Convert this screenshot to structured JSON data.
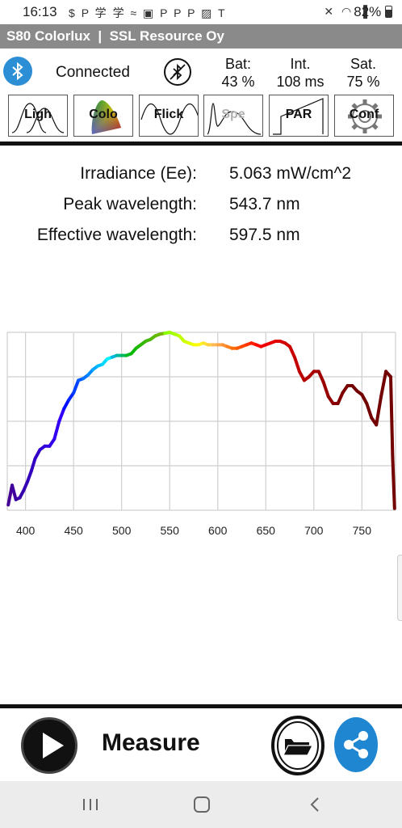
{
  "status_bar": {
    "time": "16:13",
    "notification_icons": [
      "cash-icon",
      "paypal-icon",
      "chinese-app-icon",
      "chinese-app-icon",
      "cast-icon",
      "linkedin-icon",
      "paypal-icon",
      "paypal-icon",
      "paypal-icon",
      "gallery-icon",
      "tesla-icon"
    ],
    "system_icons": [
      "mute-icon",
      "wifi-icon",
      "signal-icon"
    ],
    "battery": "82%"
  },
  "title_bar": {
    "title": "S80 Colorlux  |  SSL Resource Oy"
  },
  "connection": {
    "status": "Connected"
  },
  "stats": [
    {
      "label": "Bat:",
      "value": "43 %"
    },
    {
      "label": "Int.",
      "value": "108 ms"
    },
    {
      "label": "Sat.",
      "value": "75 %"
    }
  ],
  "function_buttons": [
    {
      "id": "light",
      "label": "Ligh"
    },
    {
      "id": "color",
      "label": "Colo"
    },
    {
      "id": "flicker",
      "label": "Flick"
    },
    {
      "id": "spectrum",
      "label": "Spe"
    },
    {
      "id": "par",
      "label": "PAR"
    },
    {
      "id": "config",
      "label": "Conf"
    }
  ],
  "readings": [
    {
      "label": "Irradiance (Ee):",
      "value": "5.063 mW/cm^2"
    },
    {
      "label": "Peak wavelength:",
      "value": "543.7 nm"
    },
    {
      "label": "Effective wavelength:",
      "value": "597.5 nm"
    }
  ],
  "chart_data": {
    "type": "line",
    "title": "",
    "xlabel": "",
    "ylabel": "",
    "x_ticks": [
      "400",
      "450",
      "500",
      "550",
      "600",
      "650",
      "700",
      "750"
    ],
    "xlim": [
      381,
      785
    ],
    "ylim": [
      0,
      1
    ],
    "grid": true,
    "series": [
      {
        "x": [
          382,
          386,
          390,
          394,
          398,
          402,
          406,
          410,
          415,
          420,
          425,
          430,
          435,
          440,
          445,
          450,
          455,
          460,
          465,
          470,
          475,
          480,
          485,
          490,
          495,
          500,
          505,
          510,
          515,
          520,
          525,
          530,
          535,
          540,
          545,
          550,
          555,
          560,
          565,
          570,
          575,
          580,
          585,
          590,
          595,
          600,
          605,
          610,
          615,
          620,
          625,
          630,
          635,
          640,
          645,
          650,
          655,
          660,
          665,
          670,
          675,
          680,
          685,
          690,
          695,
          700,
          705,
          710,
          715,
          720,
          725,
          730,
          735,
          740,
          745,
          750,
          755,
          760,
          765,
          770,
          775,
          780,
          782,
          784
        ],
        "y": [
          0.03,
          0.14,
          0.06,
          0.07,
          0.11,
          0.16,
          0.22,
          0.29,
          0.34,
          0.36,
          0.36,
          0.4,
          0.5,
          0.57,
          0.62,
          0.66,
          0.73,
          0.74,
          0.76,
          0.79,
          0.81,
          0.82,
          0.85,
          0.86,
          0.87,
          0.87,
          0.87,
          0.88,
          0.91,
          0.93,
          0.95,
          0.96,
          0.98,
          0.99,
          0.995,
          1.0,
          0.99,
          0.98,
          0.95,
          0.94,
          0.93,
          0.93,
          0.94,
          0.93,
          0.93,
          0.93,
          0.93,
          0.92,
          0.91,
          0.91,
          0.92,
          0.93,
          0.94,
          0.93,
          0.92,
          0.93,
          0.94,
          0.95,
          0.95,
          0.94,
          0.92,
          0.86,
          0.78,
          0.73,
          0.75,
          0.78,
          0.78,
          0.72,
          0.64,
          0.6,
          0.6,
          0.66,
          0.7,
          0.7,
          0.67,
          0.65,
          0.6,
          0.52,
          0.48,
          0.64,
          0.78,
          0.75,
          0.3,
          0.01
        ]
      }
    ]
  },
  "bottom_bar": {
    "measure_label": "Measure"
  },
  "nav_bar": {
    "items": [
      "recent-apps",
      "home",
      "back"
    ]
  },
  "colors": {
    "title_bar": "#8a8a8a",
    "bluetooth": "#2c8fd6",
    "share": "#1f86d2",
    "divider": "#111111"
  }
}
